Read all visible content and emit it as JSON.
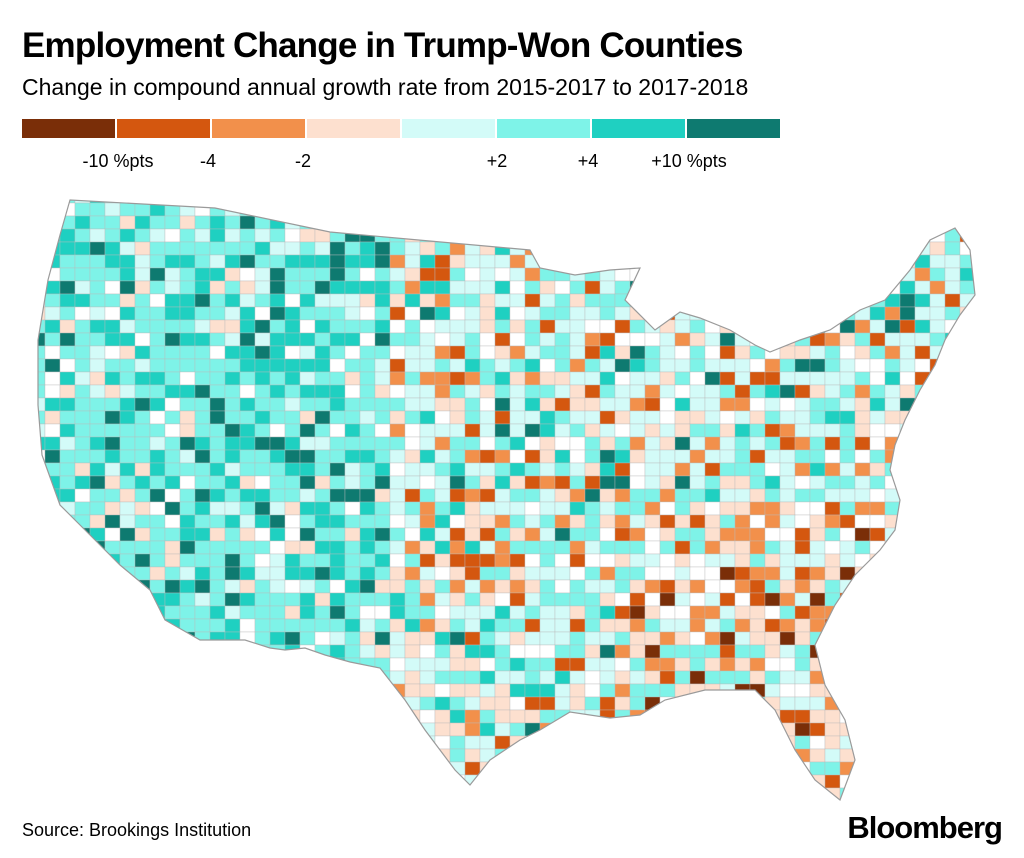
{
  "header": {
    "title": "Employment Change in Trump-Won Counties",
    "subtitle": "Change in compound annual growth rate from 2015-2017 to 2017-2018"
  },
  "legend": {
    "colors": [
      "#7a2e08",
      "#d4570f",
      "#f2904b",
      "#fde0cf",
      "#d3fbf8",
      "#7ef3e8",
      "#1fd0c1",
      "#0e7a70"
    ],
    "labels": [
      "-10 %pts",
      "-4",
      "-2",
      "+2",
      "+4",
      "+10 %pts"
    ]
  },
  "map": {
    "border_color": "#bbbbbb",
    "land_color": "#ffffff"
  },
  "footer": {
    "source": "Source: Brookings Institution",
    "brand": "Bloomberg"
  }
}
